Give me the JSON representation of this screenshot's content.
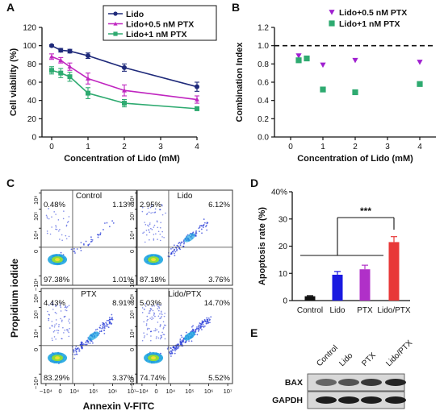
{
  "panels": {
    "A": "A",
    "B": "B",
    "C": "C",
    "D": "D",
    "E": "E"
  },
  "chart_data": [
    {
      "panel": "A",
      "type": "line",
      "xlabel": "Concentration of Lido (mM)",
      "ylabel": "Cell viability (%)",
      "xlim": [
        0,
        4
      ],
      "ylim": [
        0,
        120
      ],
      "xticks": [
        "0",
        "1",
        "2",
        "3",
        "4"
      ],
      "yticks": [
        "0",
        "20",
        "40",
        "60",
        "80",
        "100",
        "120"
      ],
      "legend_position": "top-right",
      "series": [
        {
          "name": "Lido",
          "color": "#1f2a7a",
          "marker": "circle",
          "x": [
            0,
            0.25,
            0.5,
            1,
            2,
            4
          ],
          "y": [
            100,
            95,
            94,
            89,
            76,
            55
          ],
          "err": [
            1,
            2,
            2,
            3,
            4,
            5
          ]
        },
        {
          "name": "Lido+0.5 nM PTX",
          "color": "#c026c0",
          "marker": "triangle",
          "x": [
            0,
            0.25,
            0.5,
            1,
            2,
            4
          ],
          "y": [
            88,
            84,
            77,
            64,
            51,
            41
          ],
          "err": [
            3,
            3,
            4,
            6,
            6,
            4
          ]
        },
        {
          "name": "Lido+1 nM PTX",
          "color": "#2eaa70",
          "marker": "square",
          "x": [
            0,
            0.25,
            0.5,
            1,
            2,
            4
          ],
          "y": [
            73,
            70,
            66,
            48,
            37,
            31
          ],
          "err": [
            4,
            5,
            5,
            6,
            4,
            2
          ]
        }
      ]
    },
    {
      "panel": "B",
      "type": "scatter",
      "xlabel": "Concentration of Lido (mM)",
      "ylabel": "Combination Index",
      "xlim": [
        -0.5,
        4.5
      ],
      "ylim": [
        0,
        1.2
      ],
      "xticks": [
        "0",
        "1",
        "2",
        "3",
        "4"
      ],
      "yticks": [
        "0.0",
        "0.2",
        "0.4",
        "0.6",
        "0.8",
        "1.0",
        "1.2"
      ],
      "reference_line": 1.0,
      "legend_position": "top-right",
      "series": [
        {
          "name": "Lido+0.5 nM PTX",
          "color": "#a020d0",
          "marker": "triangle-down",
          "x": [
            0.25,
            1,
            2,
            4
          ],
          "y": [
            0.89,
            0.79,
            0.84,
            0.82
          ]
        },
        {
          "name": "Lido+1 nM PTX",
          "color": "#2eaa70",
          "marker": "square",
          "x": [
            0.25,
            0.5,
            1,
            2,
            4
          ],
          "y": [
            0.84,
            0.86,
            0.52,
            0.49,
            0.58
          ]
        }
      ]
    },
    {
      "panel": "D",
      "type": "bar",
      "ylabel": "Apoptosis rate (%)",
      "ylim": [
        0,
        40
      ],
      "yticks": [
        "0",
        "10",
        "20",
        "30",
        "40%"
      ],
      "categories": [
        "Control",
        "Lido",
        "PTX",
        "Lido/PTX"
      ],
      "values": [
        1.6,
        9.5,
        11.5,
        21.5
      ],
      "errors": [
        0.2,
        1.2,
        1.5,
        2.0
      ],
      "colors": [
        "#111111",
        "#1a1ae0",
        "#b030c8",
        "#e83838"
      ],
      "significance": "***"
    }
  ],
  "flow": {
    "ylabel": "Propidium iodide",
    "xlabel": "Annexin V-FITC",
    "xticks": [
      "−10⁴",
      "0",
      "10⁴",
      "10⁵",
      "10⁶",
      "10⁷"
    ],
    "yticks": [
      "10⁶",
      "10⁵",
      "10⁴",
      "0",
      "−10⁴"
    ],
    "plots": [
      {
        "title": "Control",
        "ul": "0.48%",
        "ur": "1.13%",
        "ll": "97.38%",
        "lr": "1.01%"
      },
      {
        "title": "Lido",
        "ul": "2.95%",
        "ur": "6.12%",
        "ll": "87.18%",
        "lr": "3.76%"
      },
      {
        "title": "PTX",
        "ul": "4.43%",
        "ur": "8.91%",
        "ll": "83.29%",
        "lr": "3.37%"
      },
      {
        "title": "Lido/PTX",
        "ul": "5.03%",
        "ur": "14.70%",
        "ll": "74.74%",
        "lr": "5.52%"
      }
    ]
  },
  "blot": {
    "lanes": [
      "Control",
      "Lido",
      "PTX",
      "Lido/PTX"
    ],
    "rows": [
      "BAX",
      "GAPDH"
    ],
    "bax_intensity": [
      0.55,
      0.65,
      0.8,
      0.9
    ],
    "gapdh_intensity": [
      0.95,
      0.95,
      0.95,
      0.95
    ]
  }
}
